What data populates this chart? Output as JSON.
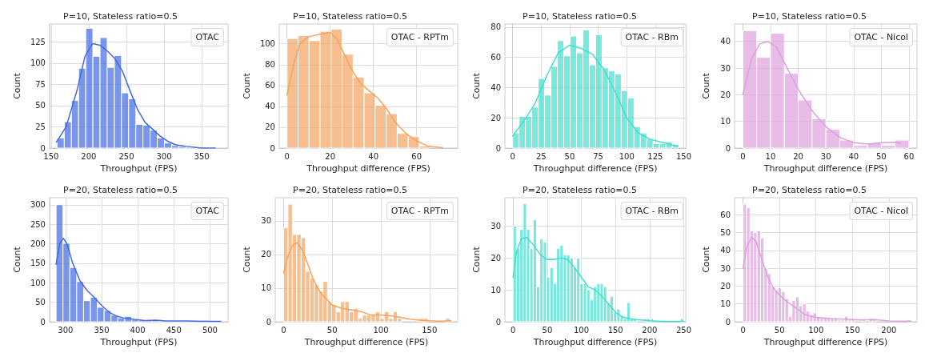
{
  "chart_data": [
    {
      "type": "histogram",
      "title": "P=10, Stateless ratio=0.5",
      "xlabel": "Throughput (FPS)",
      "ylabel": "Count",
      "legend_title": "OTAC",
      "grid": true,
      "xlim": [
        148,
        385
      ],
      "xticks": [
        150,
        200,
        250,
        300,
        350
      ],
      "ylim": [
        0,
        146
      ],
      "yticks": [
        0,
        25,
        50,
        75,
        100,
        125
      ],
      "series": [
        {
          "type": "histogram",
          "color": "#4169e1",
          "bins": [
            158,
            167.5,
            177,
            186.5,
            196,
            205.5,
            215,
            224.5,
            234,
            243.5,
            253,
            262.5,
            272,
            281.5,
            291,
            300.5,
            310,
            319.5,
            329,
            338.5,
            348,
            357.5,
            367
          ],
          "values": [
            12,
            31,
            56,
            94,
            141,
            108,
            130,
            95,
            109,
            65,
            58,
            28,
            27,
            21,
            12,
            6,
            3,
            2,
            1,
            1,
            0,
            1
          ]
        },
        {
          "type": "line",
          "color": "#4169e1",
          "x": [
            157,
            170,
            185,
            195,
            205,
            215,
            225,
            235,
            245,
            255,
            265,
            275,
            285,
            295,
            305,
            315,
            330,
            350,
            368
          ],
          "values": [
            7,
            25,
            70,
            108,
            123,
            121,
            114,
            105,
            90,
            67,
            45,
            30,
            22,
            14,
            8,
            4,
            2,
            0,
            0
          ]
        }
      ]
    },
    {
      "type": "histogram",
      "title": "P=10, Stateless ratio=0.5",
      "xlabel": "Throughput difference (FPS)",
      "ylabel": "Count",
      "legend_title": "OTAC - RPTm",
      "grid": true,
      "xlim": [
        -3.6,
        79
      ],
      "xticks": [
        0,
        20,
        40,
        60
      ],
      "ylim": [
        0,
        119
      ],
      "yticks": [
        0,
        20,
        40,
        60,
        80,
        100
      ],
      "series": [
        {
          "type": "histogram",
          "color": "#f4a460",
          "bins": [
            0,
            5.1,
            10.2,
            15.3,
            20.4,
            25.5,
            30.6,
            35.7,
            40.8,
            45.9,
            51,
            56.1,
            61.2,
            66.3
          ],
          "values": [
            105,
            108,
            103,
            112,
            114,
            90,
            68,
            53,
            41,
            33,
            14,
            11,
            2
          ]
        },
        {
          "type": "line",
          "color": "#f4a460",
          "x": [
            0,
            3,
            6,
            10,
            15,
            20,
            23,
            27,
            30,
            34,
            38,
            42,
            46,
            50,
            55,
            60,
            65,
            72
          ],
          "values": [
            51,
            80,
            100,
            107,
            109,
            111,
            105,
            88,
            75,
            62,
            55,
            48,
            38,
            25,
            14,
            7,
            2,
            0.3
          ]
        }
      ]
    },
    {
      "type": "histogram",
      "title": "P=10, Stateless ratio=0.5",
      "xlabel": "Throughput difference (FPS)",
      "ylabel": "Count",
      "legend_title": "OTAC - RBm",
      "grid": true,
      "xlim": [
        -6.8,
        152
      ],
      "xticks": [
        0,
        25,
        50,
        75,
        100,
        125,
        150
      ],
      "ylim": [
        0,
        82
      ],
      "yticks": [
        0,
        20,
        40,
        60,
        80
      ],
      "series": [
        {
          "type": "histogram",
          "color": "#40e0d0",
          "bins": [
            0,
            5.6,
            11.2,
            16.8,
            22.4,
            28,
            33.6,
            39.2,
            44.8,
            50.4,
            56,
            61.6,
            67.2,
            72.8,
            78.4,
            84,
            89.6,
            95.2,
            100.8,
            106.4,
            112,
            117.6,
            123.2,
            128.8,
            134.4,
            140,
            145.6
          ],
          "values": [
            10,
            21,
            21,
            27,
            46,
            35,
            54,
            71,
            61,
            74,
            63,
            78,
            55,
            75,
            53,
            51,
            49,
            38,
            33,
            14,
            10,
            6,
            3,
            3,
            4,
            2
          ]
        },
        {
          "type": "line",
          "color": "#40e0d0",
          "x": [
            0,
            10,
            20,
            30,
            40,
            50,
            60,
            70,
            80,
            90,
            100,
            110,
            120,
            130,
            140,
            145
          ],
          "values": [
            8,
            18,
            30,
            48,
            63,
            68,
            66,
            62,
            52,
            37,
            20,
            10,
            6,
            4,
            2,
            1.5
          ]
        }
      ]
    },
    {
      "type": "histogram",
      "title": "P=10, Stateless ratio=0.5",
      "xlabel": "Throughput difference (FPS)",
      "ylabel": "Count",
      "legend_title": "OTAC - Nicol",
      "grid": true,
      "xlim": [
        -3,
        62.9
      ],
      "xticks": [
        0,
        10,
        20,
        30,
        40,
        50,
        60
      ],
      "ylim": [
        0,
        46.5
      ],
      "yticks": [
        0,
        10,
        20,
        30,
        40
      ],
      "series": [
        {
          "type": "histogram",
          "color": "#dda0dd",
          "bins": [
            0,
            5,
            10,
            15,
            20,
            25,
            30,
            35,
            40,
            45,
            50,
            55,
            60
          ],
          "values": [
            44,
            34,
            43,
            28,
            18,
            11,
            7,
            3,
            1,
            2,
            1,
            3
          ]
        },
        {
          "type": "line",
          "color": "#dda0dd",
          "x": [
            0,
            3,
            6,
            9,
            12,
            15,
            20,
            25,
            30,
            35,
            40,
            45,
            50,
            55,
            57
          ],
          "values": [
            20,
            33,
            39,
            40,
            38,
            32,
            22,
            14,
            8,
            4,
            2,
            1.5,
            2,
            2.2,
            1.8
          ]
        }
      ]
    },
    {
      "type": "histogram",
      "title": "P=20, Stateless ratio=0.5",
      "xlabel": "Throughput (FPS)",
      "ylabel": "Count",
      "legend_title": "OTAC",
      "grid": true,
      "xlim": [
        278,
        525
      ],
      "xticks": [
        300,
        350,
        400,
        450,
        500
      ],
      "ylim": [
        0,
        318
      ],
      "yticks": [
        0,
        50,
        100,
        150,
        200,
        250,
        300
      ],
      "series": [
        {
          "type": "histogram",
          "color": "#4169e1",
          "bins": [
            287,
            296.5,
            306,
            315.5,
            325,
            334.5,
            344,
            353.5,
            363,
            372.5,
            382,
            391.5,
            401,
            410.5,
            420,
            429.5,
            439,
            448.5,
            458,
            467.5,
            477,
            486.5,
            496,
            505.5,
            515
          ],
          "values": [
            300,
            201,
            139,
            103,
            54,
            63,
            37,
            29,
            17,
            10,
            14,
            5,
            4,
            3,
            4,
            2,
            1,
            1,
            1,
            1,
            1,
            1,
            1,
            2
          ]
        },
        {
          "type": "line",
          "color": "#4169e1",
          "x": [
            287,
            292,
            297,
            302,
            310,
            320,
            330,
            340,
            350,
            360,
            370,
            380,
            395,
            410,
            425,
            440,
            470,
            500,
            515
          ],
          "values": [
            147,
            200,
            214,
            200,
            150,
            105,
            80,
            62,
            42,
            25,
            15,
            10,
            6,
            3,
            4,
            2,
            2,
            1,
            1
          ]
        }
      ]
    },
    {
      "type": "histogram",
      "title": "P=20, Stateless ratio=0.5",
      "xlabel": "Throughput difference (FPS)",
      "ylabel": "Count",
      "legend_title": "OTAC - RPTm",
      "grid": true,
      "xlim": [
        -8.6,
        179
      ],
      "xticks": [
        0,
        50,
        100,
        150
      ],
      "ylim": [
        0,
        36.9
      ],
      "yticks": [
        0,
        10,
        20,
        30
      ],
      "series": [
        {
          "type": "histogram",
          "color": "#f4a460",
          "bins": [
            0,
            4.5,
            9,
            13.5,
            18,
            22.5,
            27,
            31.5,
            36,
            40.5,
            45,
            49.5,
            54,
            58.5,
            63,
            67.5,
            72,
            76.5,
            81,
            85.5,
            90,
            94.5,
            99,
            103.5,
            108,
            112.5,
            117,
            121.5,
            126,
            130.5,
            135,
            139.5,
            144,
            148.5,
            153,
            157.5,
            162,
            166.5,
            171
          ],
          "values": [
            28,
            35,
            26,
            26,
            25,
            15,
            13,
            11,
            9,
            12,
            6,
            5,
            3,
            6,
            6,
            3,
            4,
            1,
            2,
            2,
            2,
            3,
            1,
            3,
            1,
            3,
            1,
            0,
            0,
            0,
            0,
            1,
            1,
            0,
            0,
            0,
            0,
            1
          ]
        },
        {
          "type": "line",
          "color": "#f4a460",
          "x": [
            0,
            5,
            10,
            14,
            20,
            25,
            30,
            35,
            40,
            50,
            60,
            70,
            80,
            90,
            100,
            110,
            120,
            130,
            140,
            150,
            160,
            172
          ],
          "values": [
            14.5,
            20,
            23,
            23.5,
            21,
            17,
            13,
            10,
            8,
            5,
            4,
            3.5,
            3,
            2,
            2,
            1.8,
            1.3,
            0.8,
            0.5,
            0.3,
            0.2,
            0.3
          ]
        }
      ]
    },
    {
      "type": "histogram",
      "title": "P=20, Stateless ratio=0.5",
      "xlabel": "Throughput difference (FPS)",
      "ylabel": "Count",
      "legend_title": "OTAC - RBm",
      "grid": true,
      "xlim": [
        -12,
        253
      ],
      "xticks": [
        0,
        50,
        100,
        150,
        200,
        250
      ],
      "ylim": [
        0,
        38.9
      ],
      "yticks": [
        0,
        10,
        20,
        30
      ],
      "series": [
        {
          "type": "histogram",
          "color": "#40e0d0",
          "bins": [
            0,
            4.9,
            9.8,
            14.7,
            19.6,
            24.5,
            29.4,
            34.3,
            39.2,
            44.1,
            49,
            53.9,
            58.8,
            63.7,
            68.6,
            73.5,
            78.4,
            83.3,
            88.2,
            93.1,
            98,
            102.9,
            107.8,
            112.7,
            117.6,
            122.5,
            127.4,
            132.3,
            137.2,
            142.1,
            147,
            151.9,
            156.8,
            161.7,
            166.6,
            171.5,
            176.4,
            181.3,
            186.2,
            191.1,
            196,
            200.9,
            205.8,
            210.7,
            215.6,
            220.5,
            225.4,
            230.3,
            235.2,
            240.1,
            245,
            249.9
          ],
          "values": [
            30,
            23,
            29,
            37,
            29,
            23,
            32,
            11,
            26,
            25,
            14,
            17,
            12,
            23,
            24,
            21,
            21,
            20,
            17,
            20,
            12,
            12,
            10,
            7,
            11,
            12,
            12,
            11,
            6,
            8,
            3,
            4,
            2,
            1,
            6,
            1,
            1,
            0,
            0,
            1,
            1,
            1,
            0,
            0,
            0,
            0,
            0,
            0,
            0,
            0,
            1
          ]
        },
        {
          "type": "line",
          "color": "#40e0d0",
          "x": [
            0,
            5,
            12,
            20,
            30,
            40,
            50,
            60,
            70,
            80,
            90,
            100,
            110,
            120,
            130,
            140,
            150,
            160,
            170,
            180,
            190,
            200,
            220,
            250
          ],
          "values": [
            14,
            22,
            26,
            26.5,
            24,
            21,
            19.5,
            19.5,
            20,
            19.5,
            17,
            14,
            11,
            10,
            8,
            5.5,
            3,
            1.5,
            1,
            0.7,
            0.5,
            0.3,
            0.1,
            0.1
          ]
        }
      ]
    },
    {
      "type": "histogram",
      "title": "P=20, Stateless ratio=0.5",
      "xlabel": "Throughput difference (FPS)",
      "ylabel": "Count",
      "legend_title": "OTAC - Nicol",
      "grid": true,
      "xlim": [
        -11.6,
        238.6
      ],
      "xticks": [
        0,
        50,
        100,
        150,
        200
      ],
      "ylim": [
        0,
        69.6
      ],
      "yticks": [
        0,
        10,
        20,
        30,
        40,
        50,
        60
      ],
      "series": [
        {
          "type": "histogram",
          "color": "#dda0dd",
          "bins": [
            0,
            4.8,
            9.6,
            14.4,
            19.2,
            24,
            28.8,
            33.6,
            38.4,
            43.2,
            48,
            52.8,
            57.6,
            62.4,
            67.2,
            72,
            76.8,
            81.6,
            86.4,
            91.2,
            96,
            100.8,
            105.6,
            110.4,
            115.2,
            120,
            124.8,
            129.6,
            134.4,
            139.2,
            144,
            148.8,
            153.6,
            158.4,
            163.2,
            168,
            172.8,
            177.6,
            182.4,
            187.2,
            192,
            196.8,
            201.6,
            206.4,
            211.2,
            216,
            220.8,
            225.6,
            230.4
          ],
          "values": [
            66,
            64,
            51,
            50,
            51,
            47,
            30,
            27,
            20,
            18,
            19,
            17,
            13,
            3,
            12,
            14,
            9,
            10,
            6,
            4,
            5,
            3,
            2,
            2,
            2,
            2,
            2,
            1,
            1,
            3,
            1,
            1,
            0,
            0,
            1,
            0,
            2,
            1,
            0,
            0,
            0,
            0,
            0,
            0,
            0,
            0,
            0,
            1
          ]
        },
        {
          "type": "line",
          "color": "#dda0dd",
          "x": [
            0,
            5,
            12,
            18,
            25,
            35,
            45,
            55,
            65,
            75,
            85,
            100,
            120,
            140,
            160,
            180,
            200,
            230
          ],
          "values": [
            30,
            42,
            47.5,
            45,
            36,
            24,
            17,
            13,
            10,
            7,
            4,
            2.5,
            1.8,
            1.5,
            1,
            1.2,
            0.5,
            0.3
          ]
        }
      ]
    }
  ]
}
